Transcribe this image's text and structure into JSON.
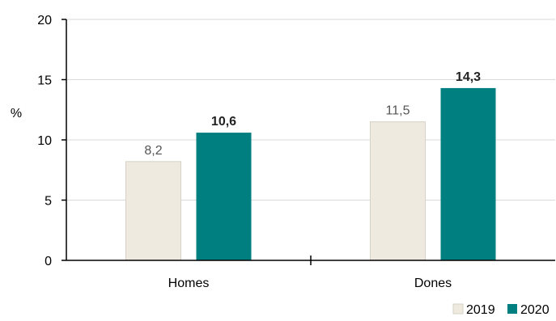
{
  "chart_data": {
    "type": "bar",
    "ylabel": "%",
    "ylim": [
      0,
      20
    ],
    "yticks": [
      "0",
      "5",
      "10",
      "15",
      "20"
    ],
    "ytick_values": [
      0,
      5,
      10,
      15,
      20
    ],
    "grid": true,
    "legend_position": "bottom-right",
    "categories": [
      "Homes",
      "Dones"
    ],
    "series": [
      {
        "name": "2019",
        "color": "#EEEADF",
        "values": [
          8.2,
          11.5
        ],
        "labels": [
          "8,2",
          "11,5"
        ],
        "label_bold": false
      },
      {
        "name": "2020",
        "color": "#007F80",
        "values": [
          10.6,
          14.3
        ],
        "labels": [
          "10,6",
          "14,3"
        ],
        "label_bold": true
      }
    ]
  }
}
